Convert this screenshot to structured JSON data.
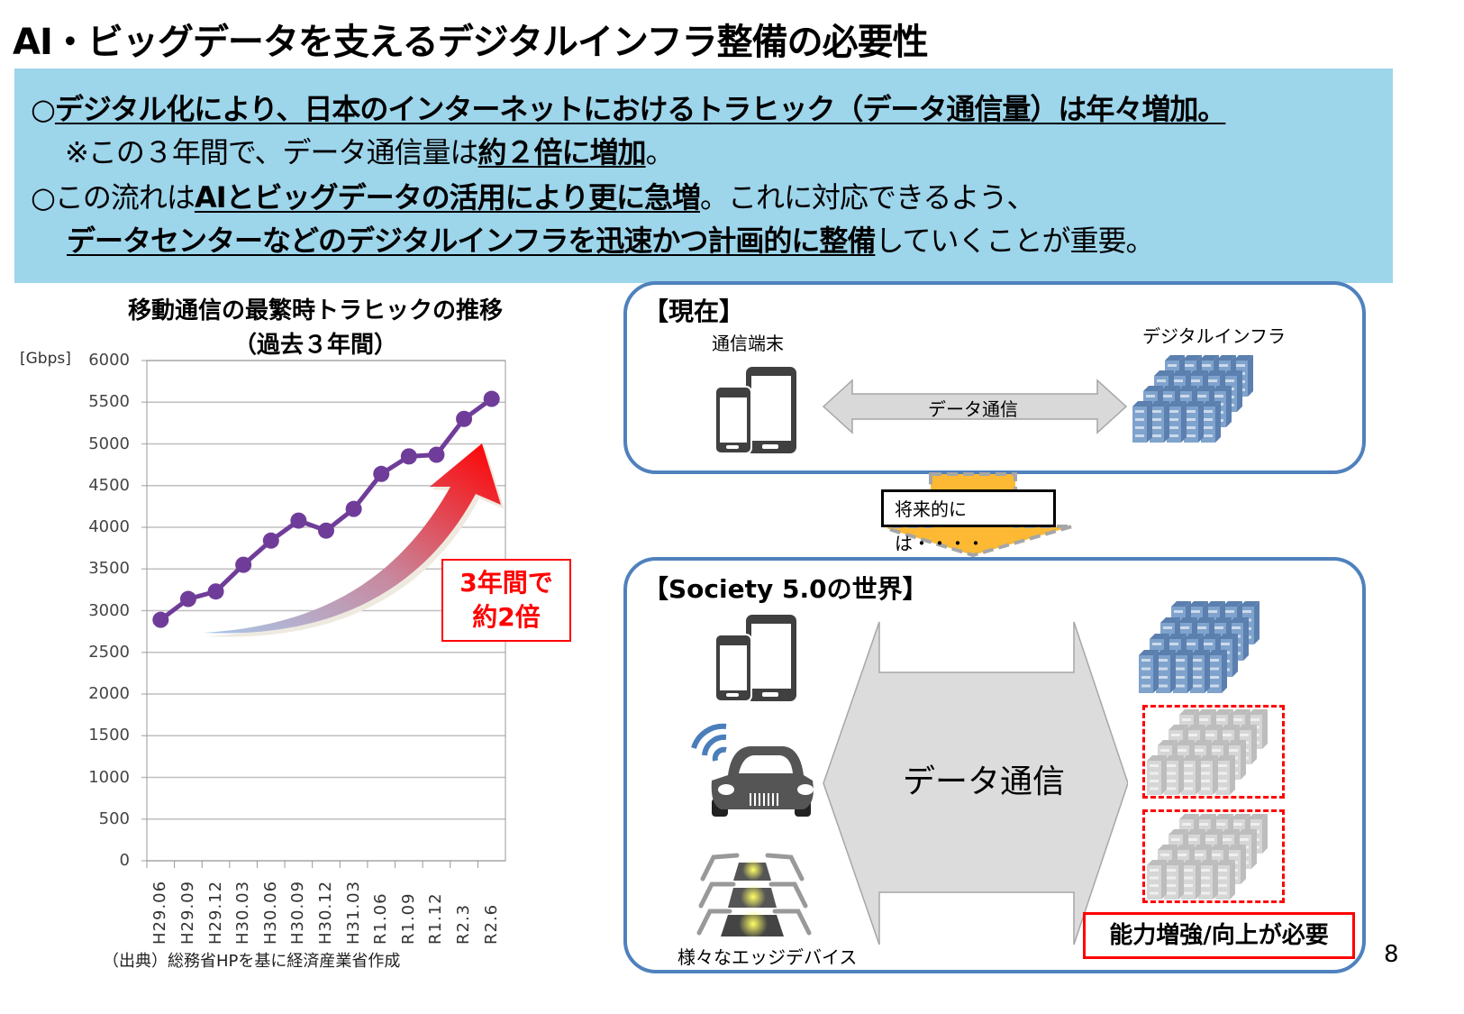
{
  "slide": {
    "title": "AI・ビッグデータを支えるデジタルインフラ整備の必要性",
    "page_number": "8"
  },
  "banner": {
    "background": "#9dd5eb",
    "line1": {
      "prefix": "○",
      "bold_underlined": "デジタル化により、日本のインターネットにおけるトラヒック（データ通信量）は年々増加。"
    },
    "line2": {
      "prefix": "※この３年間で、データ通信量は",
      "bold_underlined": "約２倍に増加",
      "suffix": "。"
    },
    "line3": {
      "prefix": "○この流れは",
      "bold_underlined": "AIとビッグデータの活用により更に急増",
      "suffix": "。これに対応できるよう、"
    },
    "line4": {
      "bold_underlined": "データセンターなどのデジタルインフラを迅速かつ計画的に整備",
      "suffix": "していくことが重要。"
    }
  },
  "chart_data": {
    "type": "line",
    "title": "移動通信の最繁時トラヒックの推移",
    "subtitle": "（過去３年間）",
    "ylabel": "[Gbps]",
    "xlabel": "",
    "ylim": [
      0,
      6000
    ],
    "yticks": [
      "6000",
      "5500",
      "5000",
      "4500",
      "4000",
      "3500",
      "3000",
      "2500",
      "2000",
      "1500",
      "1000",
      "500",
      "0"
    ],
    "grid": true,
    "legend": "none",
    "categories": [
      "H29.06",
      "H29.09",
      "H29.12",
      "H30.03",
      "H30.06",
      "H30.09",
      "H30.12",
      "H31.03",
      "R1.06",
      "R1.09",
      "R1.12",
      "R2.3",
      "R2.6"
    ],
    "series": [
      {
        "name": "最繁時トラヒック",
        "color": "#6f3d99",
        "values": [
          2890,
          3140,
          3230,
          3550,
          3840,
          4080,
          3960,
          4220,
          4640,
          4850,
          4870,
          5300,
          5540
        ]
      }
    ],
    "annotations": [
      "3年間で",
      "約2倍"
    ],
    "source": "（出典）総務省HPを基に経済産業省作成"
  },
  "callout": {
    "line1": "3年間で",
    "line2": "約2倍",
    "color": "#ff0000"
  },
  "current_panel": {
    "title": "【現在】",
    "device_label": "通信端末",
    "infra_label": "デジタルインフラ",
    "arrow_label": "データ通信",
    "icons": [
      "smartphone-tablet-icon",
      "server-cluster-icon"
    ]
  },
  "transition": {
    "label": "将来的には・・・・",
    "arrow_color": "#fdb933"
  },
  "future_panel": {
    "title": "【Society 5.0の世界】",
    "arrow_label": "データ通信",
    "edge_label": "様々なエッジデバイス",
    "need_label": "能力増強/向上が必要",
    "icons": [
      "smartphone-tablet-icon",
      "connected-car-icon",
      "robot-arm-icon",
      "server-cluster-icon",
      "server-cluster-placeholder-icon",
      "server-cluster-placeholder-icon"
    ]
  },
  "colors": {
    "panel_border": "#4f81bd",
    "server_blue": "#7fa3cc",
    "server_grey": "#d0d0d0",
    "device_dark": "#404040",
    "alert_red": "#ff0000"
  }
}
